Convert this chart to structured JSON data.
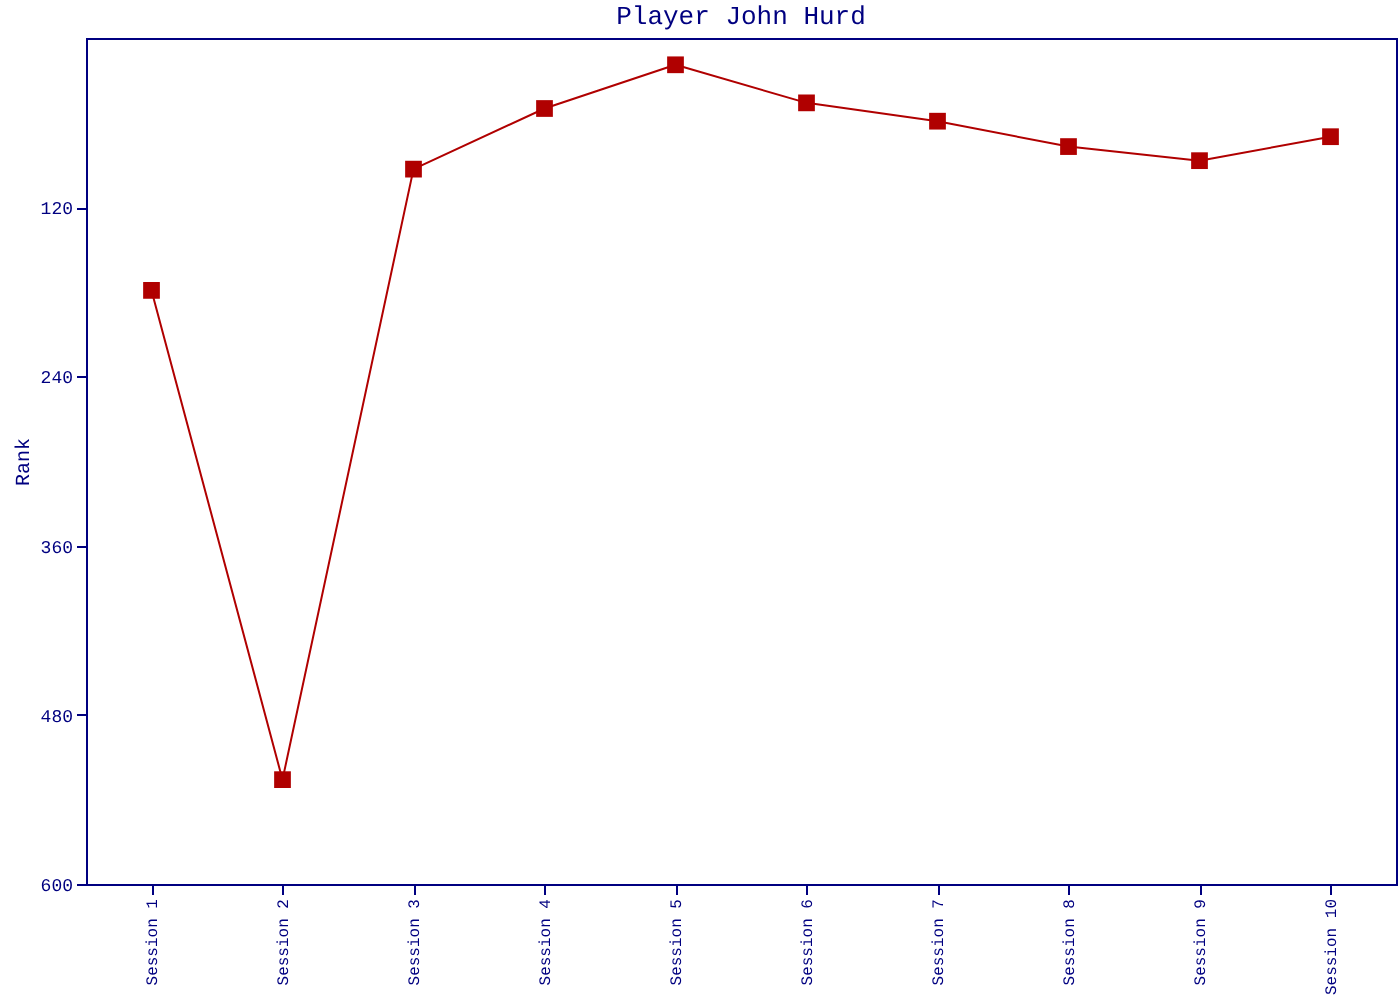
{
  "chart_data": {
    "type": "line",
    "title": "Player John Hurd",
    "ylabel": "Rank",
    "categories": [
      "Session 1",
      "Session 2",
      "Session 3",
      "Session 4",
      "Session 5",
      "Session 6",
      "Session 7",
      "Session 8",
      "Session 9",
      "Session 10"
    ],
    "series": [
      {
        "color": "#b00000",
        "values": [
          179,
          526,
          93,
          50,
          19,
          46,
          59,
          77,
          87,
          70
        ]
      }
    ],
    "ylim": [
      600,
      0
    ],
    "yticks": [
      120,
      240,
      360,
      480,
      600
    ],
    "marker": "square",
    "grid": false
  }
}
